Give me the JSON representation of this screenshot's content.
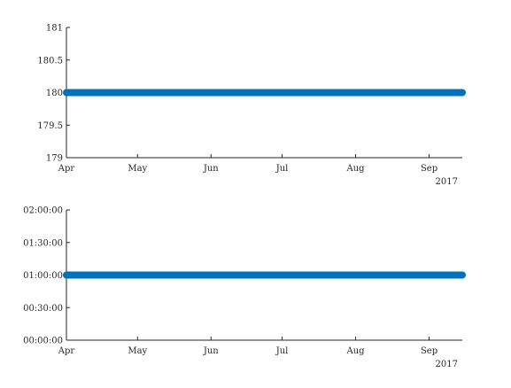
{
  "chart_data": [
    {
      "type": "scatter",
      "x_axis": {
        "type": "date",
        "range": [
          "2017-04-01",
          "2017-09-15"
        ],
        "tick_dates": [
          "2017-04-01",
          "2017-05-01",
          "2017-06-01",
          "2017-07-01",
          "2017-08-01",
          "2017-09-01"
        ],
        "tick_labels": [
          "Apr",
          "May",
          "Jun",
          "Jul",
          "Aug",
          "Sep"
        ],
        "secondary_label": "2017"
      },
      "y_axis": {
        "ylim": [
          179,
          181
        ],
        "ticks": [
          179,
          179.5,
          180,
          180.5,
          181
        ],
        "tick_labels": [
          "179",
          "179.5",
          "180",
          "180.5",
          "181"
        ]
      },
      "series": [
        {
          "x_range": [
            "2017-04-01",
            "2017-09-15"
          ],
          "y": 180,
          "color": "#0072BD"
        }
      ],
      "grid": false,
      "legend": "none"
    },
    {
      "type": "scatter",
      "x_axis": {
        "type": "date",
        "range": [
          "2017-04-01",
          "2017-09-15"
        ],
        "tick_dates": [
          "2017-04-01",
          "2017-05-01",
          "2017-06-01",
          "2017-07-01",
          "2017-08-01",
          "2017-09-01"
        ],
        "tick_labels": [
          "Apr",
          "May",
          "Jun",
          "Jul",
          "Aug",
          "Sep"
        ],
        "secondary_label": "2017"
      },
      "y_axis": {
        "type": "duration",
        "ylim": [
          "00:00:00",
          "02:00:00"
        ],
        "ticks": [
          "00:00:00",
          "00:30:00",
          "01:00:00",
          "01:30:00",
          "02:00:00"
        ],
        "tick_labels": [
          "00:00:00",
          "00:30:00",
          "01:00:00",
          "01:30:00",
          "02:00:00"
        ]
      },
      "series": [
        {
          "x_range": [
            "2017-04-01",
            "2017-09-15"
          ],
          "y": "01:00:00",
          "color": "#0072BD"
        }
      ],
      "grid": false,
      "legend": "none"
    }
  ]
}
